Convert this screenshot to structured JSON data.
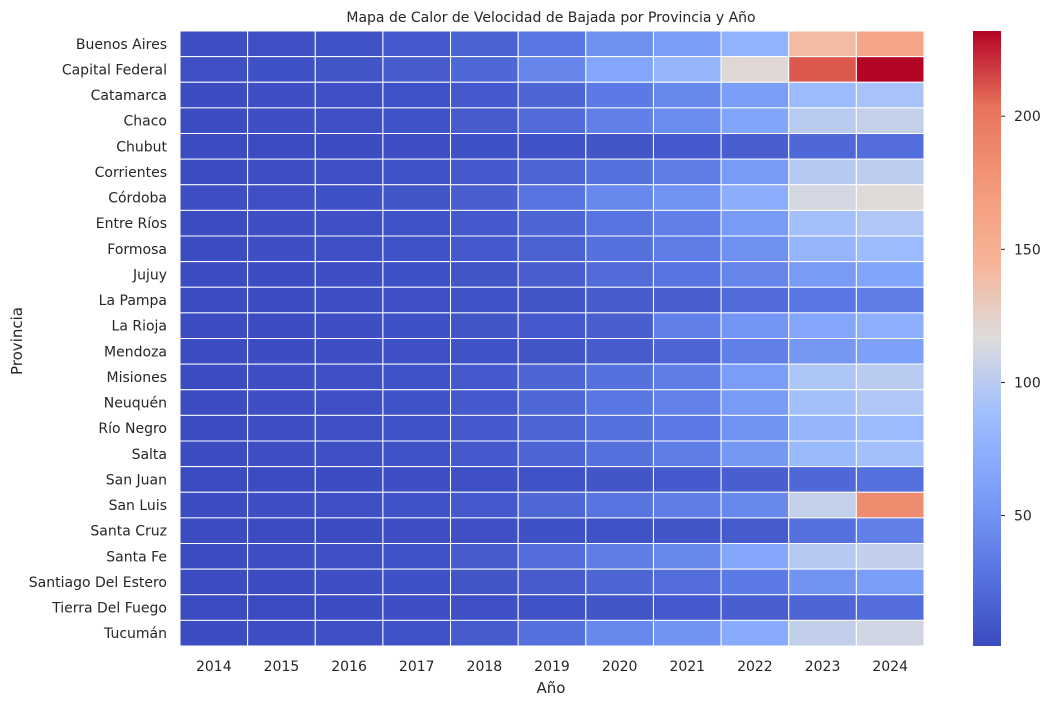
{
  "chart_data": {
    "type": "heatmap",
    "title": "Mapa de Calor de Velocidad de Bajada por Provincia y Año",
    "xlabel": "Año",
    "ylabel": "Provincia",
    "x": [
      "2014",
      "2015",
      "2016",
      "2017",
      "2018",
      "2019",
      "2020",
      "2021",
      "2022",
      "2023",
      "2024"
    ],
    "y": [
      "Buenos Aires",
      "Capital Federal",
      "Catamarca",
      "Chaco",
      "Chubut",
      "Corrientes",
      "Córdoba",
      "Entre Ríos",
      "Formosa",
      "Jujuy",
      "La Pampa",
      "La Rioja",
      "Mendoza",
      "Misiones",
      "Neuquén",
      "Río Negro",
      "Salta",
      "San Juan",
      "San Luis",
      "Santa Cruz",
      "Santa Fe",
      "Santiago Del Estero",
      "Tierra Del Fuego",
      "Tucumán"
    ],
    "values": [
      [
        3,
        4,
        6,
        10,
        16,
        30,
        48,
        57,
        78,
        140,
        160
      ],
      [
        4,
        5,
        7,
        12,
        20,
        40,
        65,
        80,
        120,
        210,
        232
      ],
      [
        2,
        3,
        4,
        6,
        10,
        18,
        32,
        42,
        58,
        85,
        92
      ],
      [
        2,
        3,
        4,
        6,
        12,
        22,
        36,
        45,
        64,
        100,
        105
      ],
      [
        1,
        1,
        2,
        3,
        5,
        6,
        8,
        10,
        14,
        20,
        24
      ],
      [
        2,
        3,
        4,
        6,
        10,
        18,
        26,
        34,
        56,
        98,
        102
      ],
      [
        3,
        4,
        5,
        8,
        14,
        28,
        42,
        50,
        72,
        112,
        118
      ],
      [
        2,
        3,
        4,
        6,
        10,
        18,
        28,
        36,
        56,
        90,
        96
      ],
      [
        2,
        3,
        4,
        6,
        10,
        16,
        26,
        34,
        48,
        80,
        86
      ],
      [
        2,
        2,
        3,
        5,
        8,
        14,
        22,
        28,
        40,
        56,
        64
      ],
      [
        2,
        2,
        3,
        4,
        6,
        8,
        12,
        14,
        22,
        30,
        34
      ],
      [
        2,
        2,
        3,
        5,
        8,
        10,
        14,
        36,
        52,
        66,
        74
      ],
      [
        2,
        2,
        3,
        4,
        6,
        8,
        12,
        18,
        36,
        54,
        60
      ],
      [
        2,
        3,
        4,
        6,
        10,
        18,
        26,
        34,
        58,
        95,
        100
      ],
      [
        2,
        3,
        4,
        6,
        10,
        20,
        30,
        38,
        56,
        90,
        96
      ],
      [
        2,
        3,
        4,
        6,
        10,
        18,
        26,
        32,
        50,
        80,
        86
      ],
      [
        2,
        3,
        4,
        6,
        10,
        18,
        26,
        34,
        54,
        84,
        90
      ],
      [
        1,
        1,
        2,
        3,
        4,
        6,
        8,
        10,
        14,
        20,
        26
      ],
      [
        2,
        3,
        4,
        6,
        10,
        20,
        28,
        34,
        42,
        105,
        185
      ],
      [
        1,
        1,
        2,
        3,
        4,
        5,
        6,
        8,
        12,
        26,
        36
      ],
      [
        2,
        3,
        4,
        6,
        12,
        24,
        34,
        42,
        66,
        98,
        104
      ],
      [
        2,
        2,
        3,
        5,
        8,
        12,
        18,
        24,
        32,
        50,
        58
      ],
      [
        1,
        1,
        2,
        3,
        4,
        6,
        8,
        10,
        14,
        18,
        24
      ],
      [
        2,
        3,
        4,
        6,
        12,
        26,
        42,
        50,
        70,
        104,
        110
      ]
    ],
    "colorbar": {
      "ticks": [
        50,
        100,
        150,
        200
      ],
      "range": [
        1,
        232
      ],
      "colormap": "coolwarm"
    }
  }
}
